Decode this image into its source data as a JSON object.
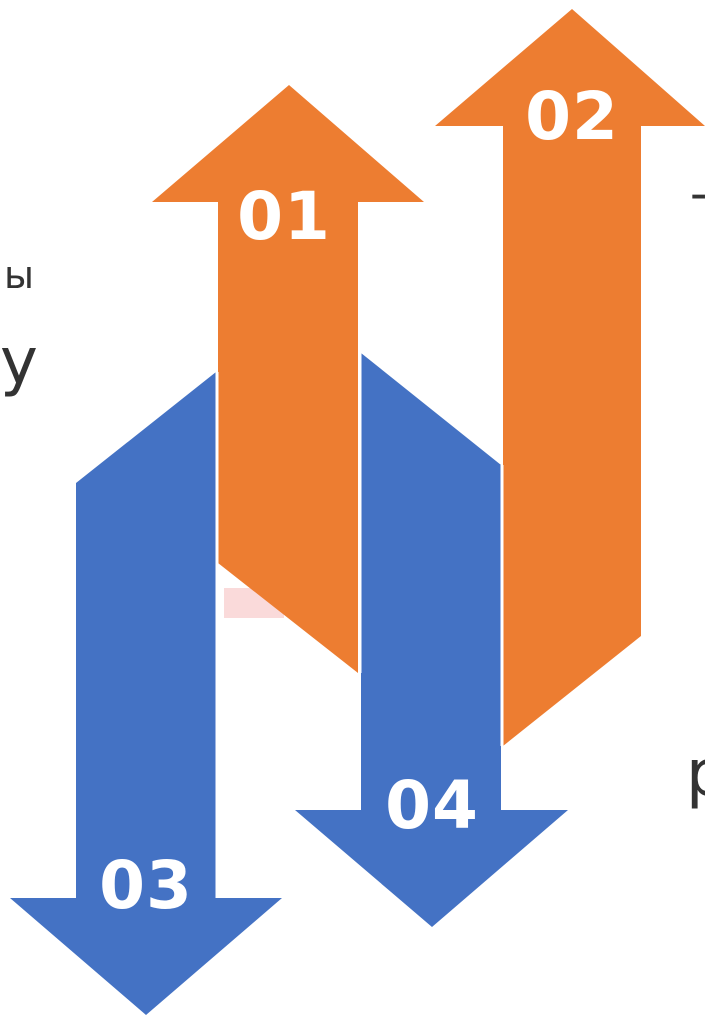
{
  "arrows": [
    {
      "label": "01",
      "direction": "up",
      "color": "#ED7D31"
    },
    {
      "label": "02",
      "direction": "up",
      "color": "#ED7D31"
    },
    {
      "label": "03",
      "direction": "down",
      "color": "#4472C4"
    },
    {
      "label": "04",
      "direction": "down",
      "color": "#4472C4"
    }
  ],
  "edge_text": {
    "left_top": "ы",
    "left_bottom": "у",
    "right_top": "-",
    "right_bottom": "р"
  }
}
